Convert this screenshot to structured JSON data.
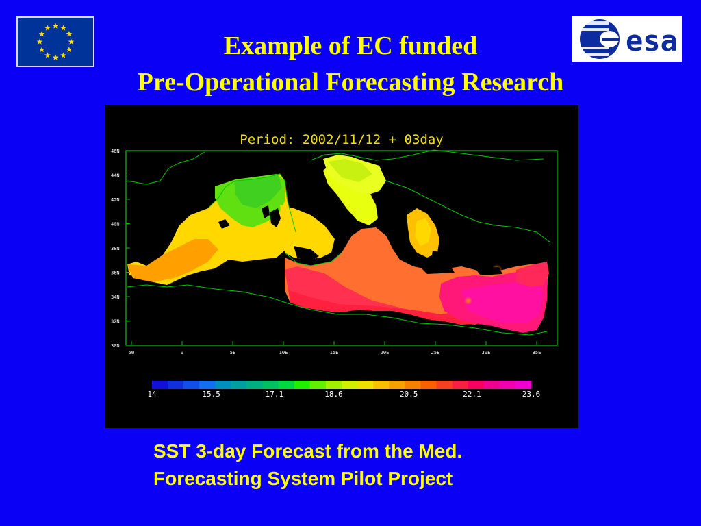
{
  "slide": {
    "title_line1": "Example of EC funded",
    "title_line2": "Pre-Operational Forecasting Research",
    "caption_line1": "SST 3-day Forecast from the Med.",
    "caption_line2": "Forecasting System Pilot Project",
    "logos": {
      "left": "eu-flag-logo",
      "right": "esa-logo",
      "right_text": "esa"
    },
    "background_color": "#0a00f5",
    "title_color": "#ffff00"
  },
  "figure": {
    "period_label": "Period: 2002/11/12 + 03day",
    "lat_ticks": [
      "46N",
      "44N",
      "42N",
      "40N",
      "38N",
      "36N",
      "34N",
      "32N",
      "30N"
    ],
    "lon_ticks": [
      "5W",
      "0",
      "5E",
      "10E",
      "15E",
      "20E",
      "25E",
      "30E",
      "35E"
    ],
    "colorbar_labels": [
      "14",
      "15.5",
      "17.1",
      "18.6",
      "20.5",
      "22.1",
      "23.6"
    ],
    "colorbar_colors": [
      "#1010d8",
      "#1030e0",
      "#1050e8",
      "#1070f0",
      "#0090c0",
      "#00a0a0",
      "#00b080",
      "#00c060",
      "#00d840",
      "#20f000",
      "#60f000",
      "#a0f000",
      "#d0f000",
      "#f0e000",
      "#f8c000",
      "#f8a000",
      "#f88000",
      "#f86000",
      "#f84020",
      "#f82040",
      "#f80060",
      "#f00090",
      "#f000b0",
      "#f000d0"
    ],
    "field": "sea surface temperature"
  }
}
